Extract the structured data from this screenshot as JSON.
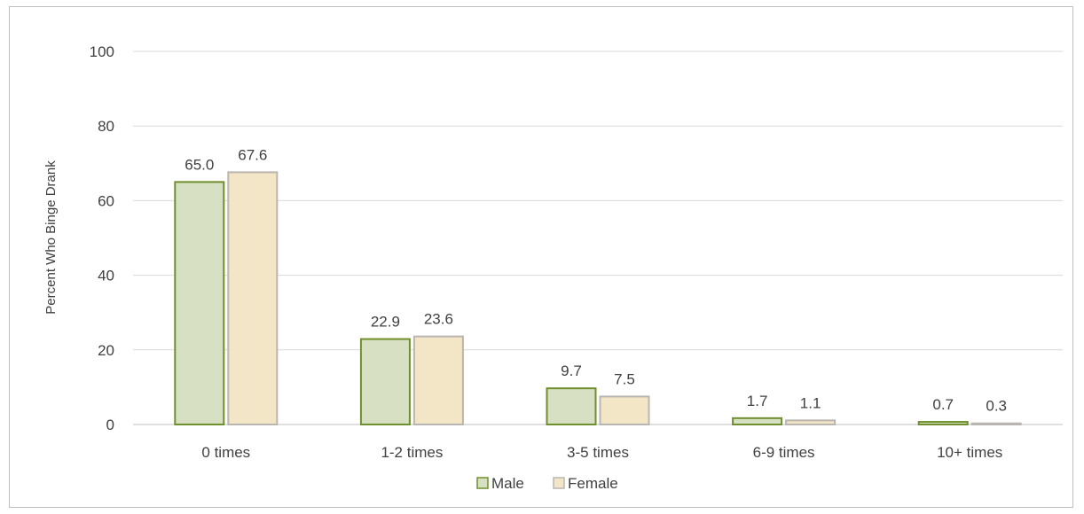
{
  "chart_data": {
    "type": "bar",
    "categories": [
      "0 times",
      "1-2 times",
      "3-5 times",
      "6-9 times",
      "10+ times"
    ],
    "series": [
      {
        "name": "Male",
        "values": [
          65.0,
          22.9,
          9.7,
          1.7,
          0.7
        ],
        "fill": "#d7e0c2",
        "stroke": "#6f8f2e"
      },
      {
        "name": "Female",
        "values": [
          67.6,
          23.6,
          7.5,
          1.1,
          0.3
        ],
        "fill": "#f3e6c6",
        "stroke": "#b9b5b0"
      }
    ],
    "ylabel": "Percent Who Binge Drank",
    "yticks": [
      0,
      20,
      40,
      60,
      80,
      100
    ],
    "ylim": [
      0,
      100
    ],
    "grid": true,
    "legend_position": "bottom",
    "gridline_color": "#d9d9d9"
  }
}
